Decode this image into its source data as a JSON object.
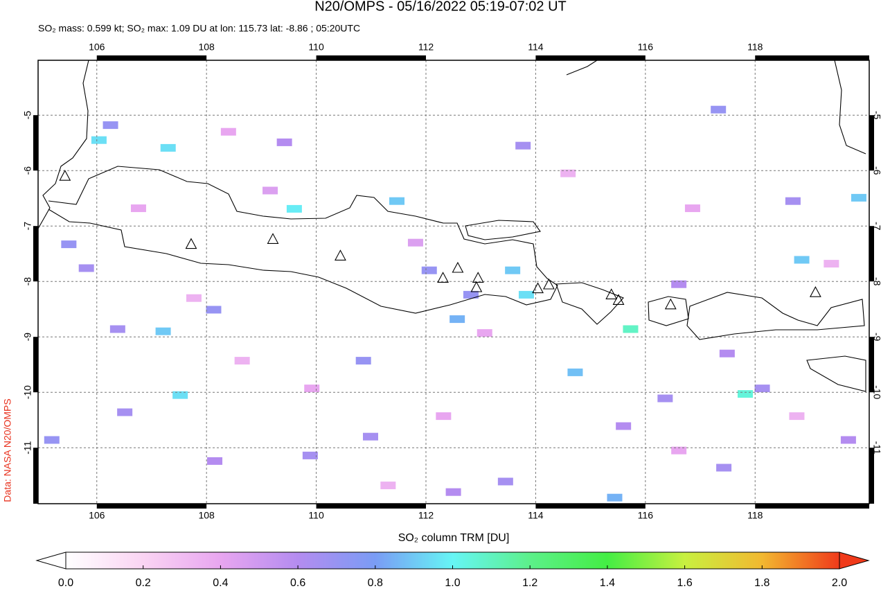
{
  "chart_data": {
    "type": "map",
    "title": "N20/OMPS - 05/16/2022 05:19-07:02 UT",
    "subtitle": "SO₂ mass: 0.599 kt; SO₂ max: 1.09 DU at lon: 115.73 lat: -8.86 ; 05:20UTC",
    "credit": "Data: NASA N20/OMPS",
    "colorbar_label": "SO₂ column TRM [DU]",
    "xlim": [
      104.93,
      120.08
    ],
    "ylim": [
      -12.01,
      -4.01
    ],
    "xticks": [
      106,
      108,
      110,
      112,
      114,
      116,
      118
    ],
    "yticks": [
      -5,
      -6,
      -7,
      -8,
      -9,
      -10,
      -11
    ],
    "grid": true,
    "clim": [
      0,
      2
    ],
    "cticks": [
      {
        "value": 0,
        "label": "0.0"
      },
      {
        "value": 0.2,
        "label": "0.2"
      },
      {
        "value": 0.4,
        "label": "0.4"
      },
      {
        "value": 0.6,
        "label": "0.6"
      },
      {
        "value": 0.8,
        "label": "0.8"
      },
      {
        "value": 1,
        "label": "1.0"
      },
      {
        "value": 1.2,
        "label": "1.2"
      },
      {
        "value": 1.4,
        "label": "1.4"
      },
      {
        "value": 1.6,
        "label": "1.6"
      },
      {
        "value": 1.8,
        "label": "1.8"
      },
      {
        "value": 2,
        "label": "2.0"
      }
    ],
    "colormap": [
      "#ffffff",
      "#fad4f3",
      "#e8a6f0",
      "#b48cf0",
      "#7a9cf5",
      "#66f5f5",
      "#5cf08a",
      "#44ee44",
      "#c8f040",
      "#f2b830",
      "#f03a1a"
    ],
    "pixels": [
      [
        106.04,
        -5.45,
        0.95
      ],
      [
        107.3,
        -5.59,
        0.95
      ],
      [
        109.6,
        -6.69,
        0.98
      ],
      [
        111.47,
        -6.55,
        0.9
      ],
      [
        107.52,
        -10.05,
        0.95
      ],
      [
        107.21,
        -8.9,
        0.9
      ],
      [
        112.57,
        -8.68,
        0.85
      ],
      [
        113.58,
        -7.8,
        0.9
      ],
      [
        113.83,
        -8.24,
        0.95
      ],
      [
        115.73,
        -8.86,
        1.09
      ],
      [
        117.82,
        -10.03,
        1.05
      ],
      [
        119.89,
        -6.49,
        0.9
      ],
      [
        118.85,
        -7.61,
        0.9
      ],
      [
        114.72,
        -9.64,
        0.88
      ],
      [
        115.44,
        -11.9,
        0.85
      ],
      [
        106.25,
        -5.18,
        0.7
      ],
      [
        110.86,
        -9.43,
        0.7
      ],
      [
        113.77,
        -5.55,
        0.65
      ],
      [
        109.42,
        -5.49,
        0.6
      ],
      [
        110.99,
        -10.8,
        0.65
      ],
      [
        108.15,
        -11.24,
        0.6
      ],
      [
        109.89,
        -11.14,
        0.65
      ],
      [
        106.38,
        -8.86,
        0.65
      ],
      [
        105.18,
        -10.86,
        0.7
      ],
      [
        105.49,
        -7.33,
        0.7
      ],
      [
        105.81,
        -7.76,
        0.65
      ],
      [
        108.13,
        -8.51,
        0.7
      ],
      [
        112.06,
        -7.8,
        0.7
      ],
      [
        112.82,
        -8.24,
        0.7
      ],
      [
        116.36,
        -10.11,
        0.65
      ],
      [
        117.33,
        -4.9,
        0.7
      ],
      [
        118.69,
        -6.55,
        0.65
      ],
      [
        116.61,
        -8.05,
        0.6
      ],
      [
        118.13,
        -9.93,
        0.65
      ],
      [
        117.49,
        -9.3,
        0.6
      ],
      [
        115.6,
        -10.61,
        0.6
      ],
      [
        113.45,
        -11.61,
        0.65
      ],
      [
        112.5,
        -11.8,
        0.6
      ],
      [
        117.43,
        -11.36,
        0.65
      ],
      [
        119.7,
        -10.86,
        0.6
      ],
      [
        106.51,
        -10.36,
        0.65
      ],
      [
        108.4,
        -5.3,
        0.4
      ],
      [
        109.16,
        -6.36,
        0.45
      ],
      [
        111.81,
        -7.3,
        0.45
      ],
      [
        113.07,
        -8.93,
        0.4
      ],
      [
        107.77,
        -8.3,
        0.35
      ],
      [
        114.59,
        -6.05,
        0.35
      ],
      [
        116.86,
        -6.68,
        0.4
      ],
      [
        118.76,
        -10.43,
        0.35
      ],
      [
        109.92,
        -9.93,
        0.4
      ],
      [
        111.31,
        -11.68,
        0.35
      ],
      [
        116.61,
        -11.05,
        0.4
      ],
      [
        106.76,
        -6.68,
        0.4
      ],
      [
        108.65,
        -9.43,
        0.35
      ],
      [
        112.32,
        -10.43,
        0.4
      ],
      [
        119.39,
        -7.68,
        0.35
      ]
    ],
    "volcanoes": [
      [
        105.42,
        -6.1
      ],
      [
        107.72,
        -7.33
      ],
      [
        109.21,
        -7.24
      ],
      [
        110.44,
        -7.54
      ],
      [
        112.31,
        -7.94
      ],
      [
        112.58,
        -7.76
      ],
      [
        112.95,
        -7.94
      ],
      [
        112.92,
        -8.11
      ],
      [
        114.04,
        -8.13
      ],
      [
        114.24,
        -8.06
      ],
      [
        115.38,
        -8.24
      ],
      [
        115.51,
        -8.34
      ],
      [
        116.46,
        -8.42
      ],
      [
        119.1,
        -8.2
      ]
    ]
  }
}
